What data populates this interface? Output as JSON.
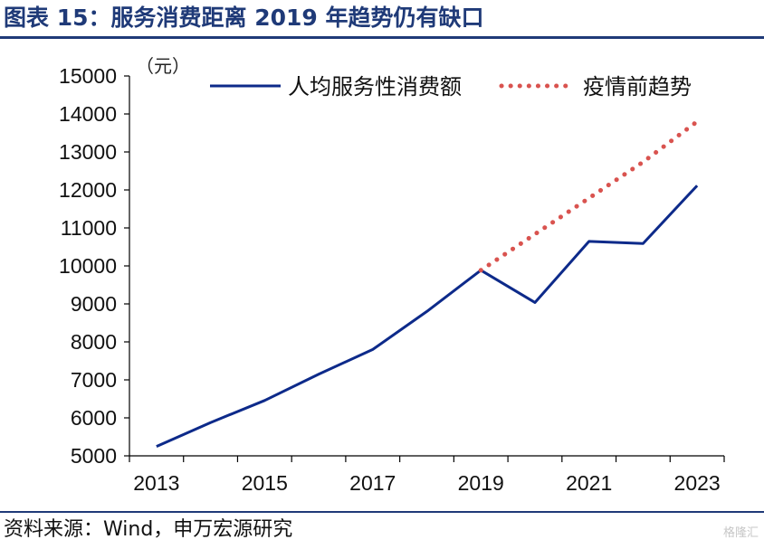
{
  "header": {
    "title": "图表 15：服务消费距离 2019 年趋势仍有缺口"
  },
  "footer": {
    "source": "资料来源：Wind，申万宏源研究",
    "watermark": "格隆汇"
  },
  "colors": {
    "line": "#0d2a8a",
    "trend": "#d9534f",
    "axis": "#000000",
    "title": "#1f3a78"
  },
  "chart_data": {
    "type": "line",
    "unit_label": "（元）",
    "x_ticks": [
      "2013",
      "2015",
      "2017",
      "2019",
      "2021",
      "2023"
    ],
    "ylim": [
      5000,
      15000
    ],
    "y_ticks": [
      5000,
      6000,
      7000,
      8000,
      9000,
      10000,
      11000,
      12000,
      13000,
      14000,
      15000
    ],
    "grid": false,
    "legend_position": "top",
    "series": [
      {
        "name": "人均服务性消费额",
        "style": "solid",
        "x": [
          2013,
          2014,
          2015,
          2016,
          2017,
          2018,
          2019,
          2020,
          2021,
          2022,
          2023
        ],
        "values": [
          5246,
          5876,
          6457,
          7149,
          7800,
          8800,
          9886,
          9037,
          10645,
          10590,
          12114
        ]
      },
      {
        "name": "疫情前趋势",
        "style": "dotted",
        "x": [
          2019,
          2020,
          2021,
          2022,
          2023
        ],
        "values": [
          9886,
          10835,
          11785,
          12735,
          13800
        ]
      }
    ]
  }
}
